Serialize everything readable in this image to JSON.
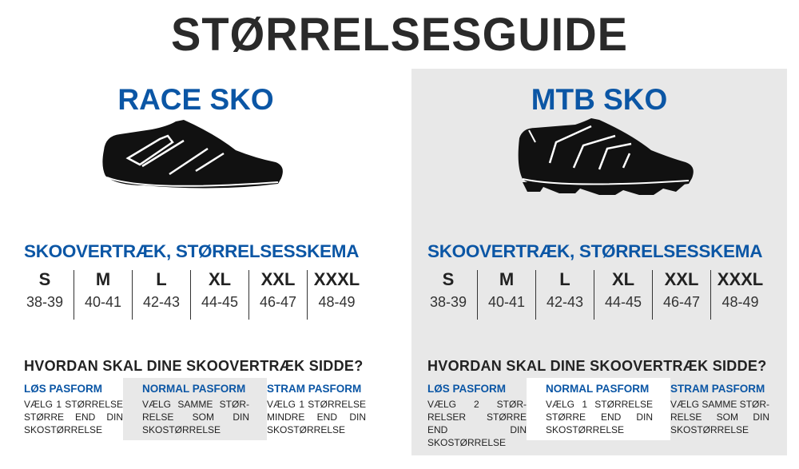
{
  "title": "STØRRELSESGUIDE",
  "colors": {
    "accent": "#0b56a5",
    "panel": "#e8e8e8",
    "text": "#222222"
  },
  "panels": [
    {
      "title": "RACE SKO",
      "shoe_icon": "road-cycling-shoe-icon",
      "table_title": "SKOOVERTRÆK, STØRRELSESSKEMA",
      "sizes": [
        {
          "size": "S",
          "range": "38-39"
        },
        {
          "size": "M",
          "range": "40-41"
        },
        {
          "size": "L",
          "range": "42-43"
        },
        {
          "size": "XL",
          "range": "44-45"
        },
        {
          "size": "XXL",
          "range": "46-47"
        },
        {
          "size": "XXXL",
          "range": "48-49"
        }
      ],
      "question": "HVORDAN SKAL DINE SKOOVERTRÆK SIDDE?",
      "fits": [
        {
          "label": "LØS PASFORM",
          "text": "VÆLG 1 STØRRELSE STØRRE END DIN SKOSTØRRELSE"
        },
        {
          "label": "NORMAL PASFORM",
          "text": "VÆLG SAMME STØR-RELSE SOM DIN SKOSTØRRELSE"
        },
        {
          "label": "STRAM PASFORM",
          "text": "VÆLG 1 STØRRELSE MINDRE END DIN SKOSTØRRELSE"
        }
      ]
    },
    {
      "title": "MTB SKO",
      "shoe_icon": "mtb-shoe-icon",
      "table_title": "SKOOVERTRÆK, STØRRELSESSKEMA",
      "sizes": [
        {
          "size": "S",
          "range": "38-39"
        },
        {
          "size": "M",
          "range": "40-41"
        },
        {
          "size": "L",
          "range": "42-43"
        },
        {
          "size": "XL",
          "range": "44-45"
        },
        {
          "size": "XXL",
          "range": "46-47"
        },
        {
          "size": "XXXL",
          "range": "48-49"
        }
      ],
      "question": "HVORDAN SKAL DINE SKOOVERTRÆK SIDDE?",
      "fits": [
        {
          "label": "LØS PASFORM",
          "text": "VÆLG 2 STØR-RELSER STØRRE END DIN SKOSTØRRELSE"
        },
        {
          "label": "NORMAL PASFORM",
          "text": "VÆLG 1 STØRRELSE STØRRE END DIN SKOSTØRRELSE"
        },
        {
          "label": "STRAM PASFORM",
          "text": "VÆLG SAMME STØR-RELSE SOM DIN SKOSTØRRELSE"
        }
      ]
    }
  ]
}
